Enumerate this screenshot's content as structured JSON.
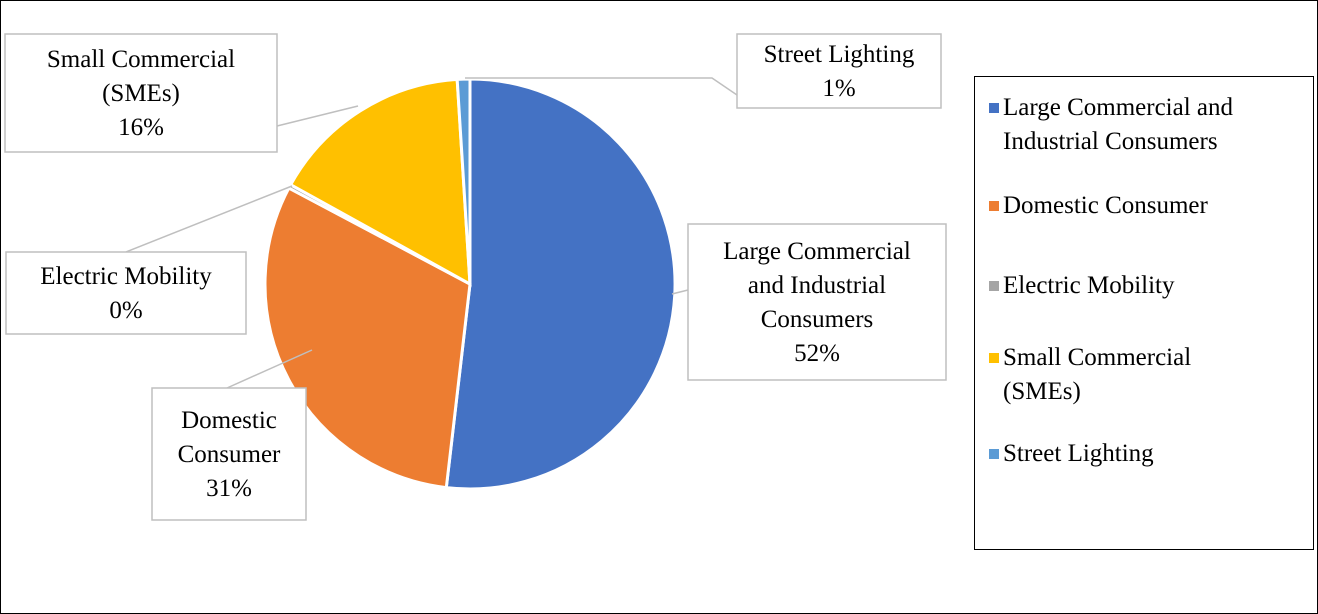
{
  "chart_data": {
    "type": "pie",
    "title": "",
    "slices": [
      {
        "label": "Large Commercial and Industrial Consumers",
        "value": 52,
        "percent_label": "52%",
        "color": "#4472C4"
      },
      {
        "label": "Domestic Consumer",
        "value": 31,
        "percent_label": "31%",
        "color": "#ED7D31"
      },
      {
        "label": "Electric Mobility",
        "value": 0.3,
        "percent_label": "0%",
        "color": "#A5A5A5"
      },
      {
        "label": "Small Commercial (SMEs)",
        "value": 16,
        "percent_label": "16%",
        "color": "#FFC000"
      },
      {
        "label": "Street Lighting",
        "value": 1,
        "percent_label": "1%",
        "color": "#5B9BD5"
      }
    ],
    "data_labels": [
      {
        "lines": [
          "Large Commercial",
          "and Industrial",
          "Consumers",
          "52%"
        ]
      },
      {
        "lines": [
          "Domestic",
          "Consumer",
          "31%"
        ]
      },
      {
        "lines": [
          "Electric Mobility",
          "0%"
        ]
      },
      {
        "lines": [
          "Small Commercial",
          "(SMEs)",
          "16%"
        ]
      },
      {
        "lines": [
          "Street Lighting",
          "1%"
        ]
      }
    ],
    "legend": {
      "position": "right",
      "items": [
        {
          "lines": [
            "Large Commercial and",
            "Industrial Consumers"
          ],
          "color": "#4472C4"
        },
        {
          "lines": [
            "Domestic Consumer"
          ],
          "color": "#ED7D31"
        },
        {
          "lines": [
            "Electric Mobility"
          ],
          "color": "#A5A5A5"
        },
        {
          "lines": [
            "Small Commercial",
            "(SMEs)"
          ],
          "color": "#FFC000"
        },
        {
          "lines": [
            "Street Lighting"
          ],
          "color": "#5B9BD5"
        }
      ]
    }
  }
}
